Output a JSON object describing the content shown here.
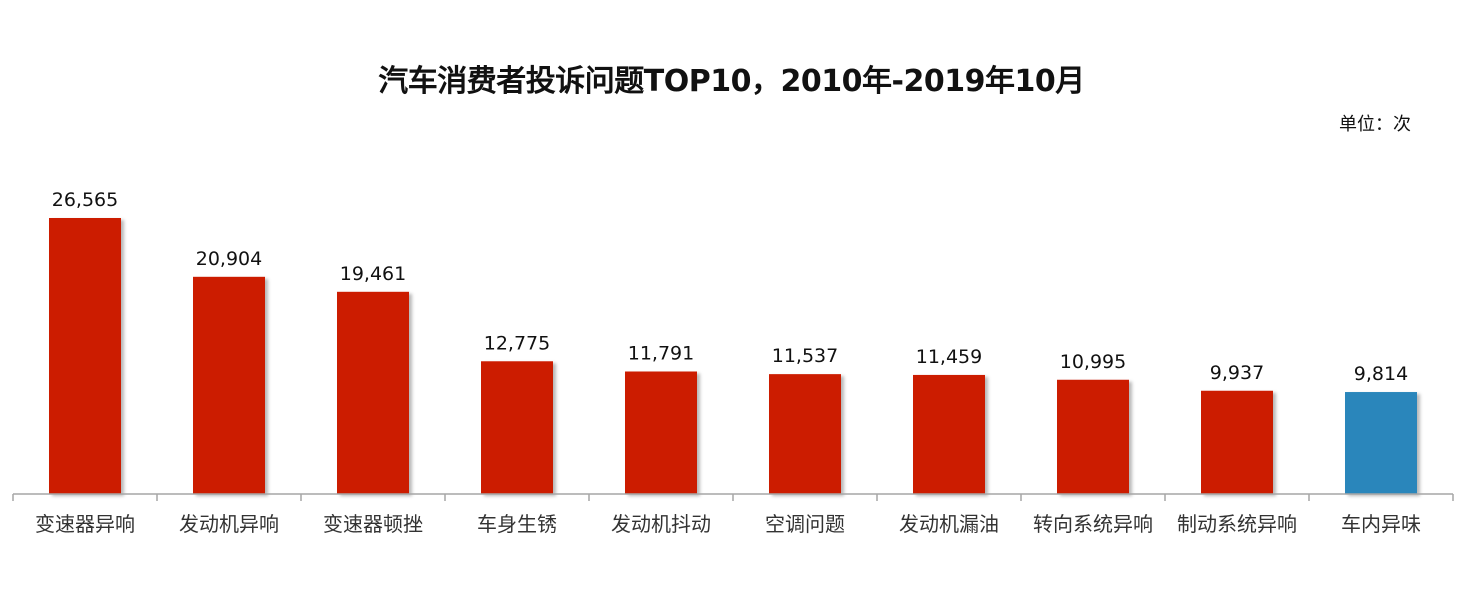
{
  "chart_data": {
    "type": "bar",
    "title": "汽车消费者投诉问题TOP10，2010年-2019年10月",
    "unit_label": "单位：次",
    "categories": [
      "变速器异响",
      "发动机异响",
      "变速器顿挫",
      "车身生锈",
      "发动机抖动",
      "空调问题",
      "发动机漏油",
      "转向系统异响",
      "制动系统异响",
      "车内异味"
    ],
    "values": [
      26565,
      20904,
      19461,
      12775,
      11791,
      11537,
      11459,
      10995,
      9937,
      9814
    ],
    "value_labels": [
      "26,565",
      "20,904",
      "19,461",
      "12,775",
      "11,791",
      "11,537",
      "11,459",
      "10,995",
      "9,937",
      "9,814"
    ],
    "bar_colors": [
      "#cc1a00",
      "#cc1a00",
      "#cc1a00",
      "#cc1a00",
      "#cc1a00",
      "#cc1a00",
      "#cc1a00",
      "#cc1a00",
      "#cc1a00",
      "#2a86bb"
    ],
    "ylim": [
      0,
      26565
    ],
    "grid": false,
    "legend": "none"
  }
}
